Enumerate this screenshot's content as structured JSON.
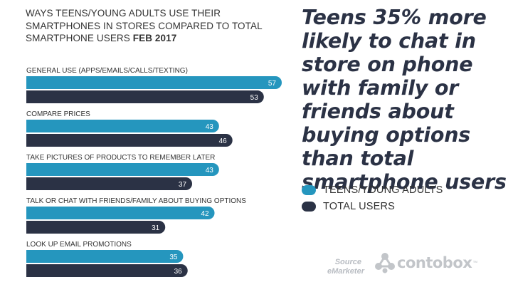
{
  "chart_data": {
    "type": "bar",
    "orientation": "horizontal",
    "title": "WAYS TEENS/YOUNG ADULTS USE THEIR SMARTPHONES IN STORES COMPARED TO TOTAL SMARTPHONE USERS",
    "title_date": "FEB 2017",
    "categories": [
      "GENERAL USE (APPS/EMAILS/CALLS/TEXTING)",
      "COMPARE PRICES",
      "TAKE PICTURES OF PRODUCTS TO REMEMBER LATER",
      "TALK OR CHAT WITH FRIENDS/FAMILY ABOUT BUYING OPTIONS",
      "LOOK UP EMAIL PROMOTIONS"
    ],
    "series": [
      {
        "name": "TEENS/YOUNG ADULTS",
        "color": "#2596be",
        "values": [
          57,
          43,
          43,
          42,
          35
        ]
      },
      {
        "name": "TOTAL USERS",
        "color": "#2b3245",
        "values": [
          53,
          46,
          37,
          31,
          36
        ]
      }
    ],
    "xlim": [
      0,
      57
    ],
    "grid": false,
    "legend_position": "right"
  },
  "headline": "Teens 35% more likely to chat in store on phone with family or friends about buying options than total smartphone users",
  "source": {
    "label": "Source",
    "name": "eMarketer"
  },
  "logo": {
    "text": "contobox",
    "tm": "™",
    "icon": "contobox-logo-icon"
  }
}
